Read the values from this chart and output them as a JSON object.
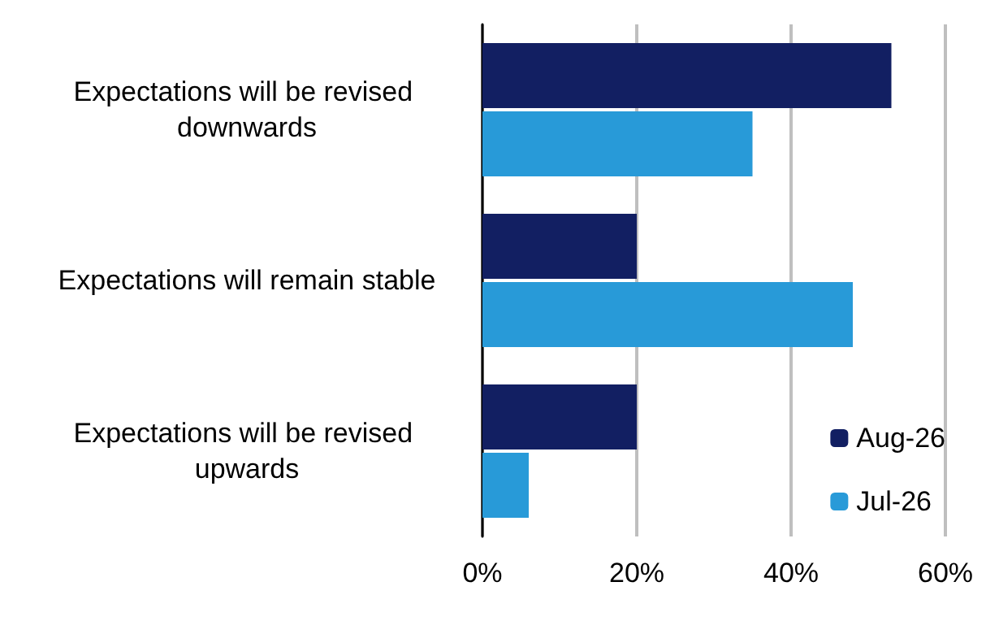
{
  "chart_data": {
    "type": "bar",
    "orientation": "horizontal",
    "categories": [
      "Expectations will be revised downwards",
      "Expectations will remain stable",
      "Expectations will be revised upwards"
    ],
    "series": [
      {
        "name": "Aug-26",
        "color": "#121f62",
        "values": [
          53,
          20,
          20
        ]
      },
      {
        "name": "Jul-26",
        "color": "#289ad8",
        "values": [
          35,
          48,
          6
        ]
      }
    ],
    "xlim": [
      0,
      60
    ],
    "xticks": [
      {
        "value": 0,
        "label": "0%"
      },
      {
        "value": 20,
        "label": "20%"
      },
      {
        "value": 40,
        "label": "40%"
      },
      {
        "value": 60,
        "label": "60%"
      }
    ],
    "grid": "x",
    "legend": "bottom right"
  }
}
